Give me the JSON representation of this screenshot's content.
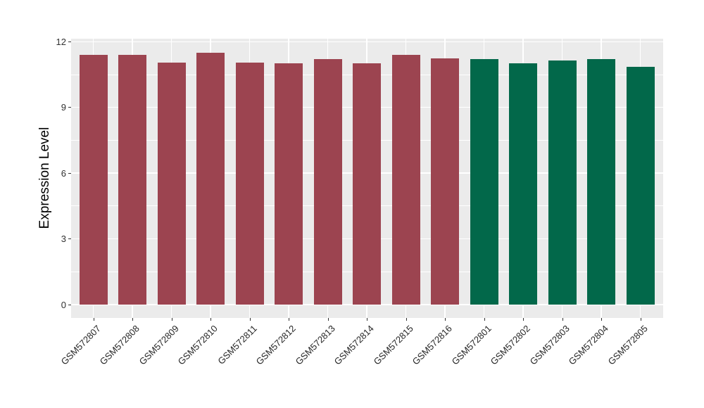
{
  "chart_data": {
    "type": "bar",
    "title": "",
    "xlabel": "",
    "ylabel": "Expression Level",
    "categories": [
      "GSM572807",
      "GSM572808",
      "GSM572809",
      "GSM572810",
      "GSM572811",
      "GSM572812",
      "GSM572813",
      "GSM572814",
      "GSM572815",
      "GSM572816",
      "GSM572801",
      "GSM572802",
      "GSM572803",
      "GSM572804",
      "GSM572805"
    ],
    "values": [
      11.4,
      11.4,
      11.05,
      11.5,
      11.05,
      11.02,
      11.2,
      11.02,
      11.4,
      11.25,
      11.22,
      11.0,
      11.15,
      11.2,
      10.87
    ],
    "bar_colors": [
      "#9C4450",
      "#9C4450",
      "#9C4450",
      "#9C4450",
      "#9C4450",
      "#9C4450",
      "#9C4450",
      "#9C4450",
      "#9C4450",
      "#9C4450",
      "#02684A",
      "#02684A",
      "#02684A",
      "#02684A",
      "#02684A"
    ],
    "ylim": [
      0,
      12
    ],
    "yticks": [
      0,
      3,
      6,
      9,
      12
    ],
    "ytick_labels": [
      "0",
      "3",
      "6",
      "9",
      "12"
    ],
    "minor_yticks": [
      1.5,
      4.5,
      7.5,
      10.5
    ],
    "legend": "none",
    "grid": "on",
    "panel_bg": "#EBEBEB",
    "grid_color": "#FFFFFF"
  }
}
